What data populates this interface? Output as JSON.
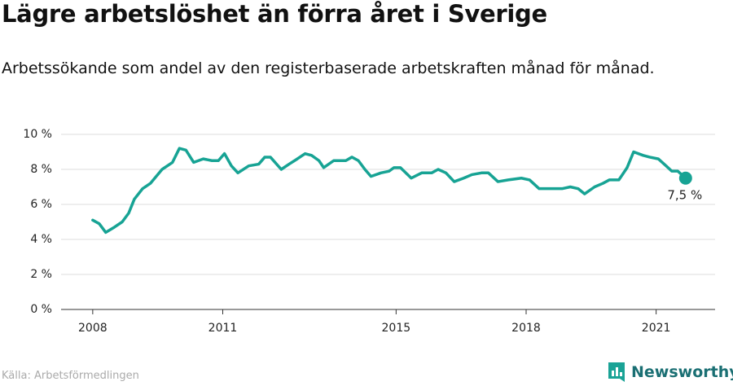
{
  "chart_data": {
    "type": "line",
    "title": "Lägre arbetslöshet än förra året i Sverige",
    "subtitle": "Arbetssökande som andel av den registerbaserade arbetskraften månad för månad.",
    "source": "Källa: Arbetsförmedlingen",
    "logo": "Newsworthy",
    "x": [
      2008.0,
      2008.15,
      2008.3,
      2008.5,
      2008.68,
      2008.83,
      2008.96,
      2009.15,
      2009.33,
      2009.6,
      2009.84,
      2010.0,
      2010.15,
      2010.33,
      2010.55,
      2010.75,
      2010.9,
      2011.04,
      2011.2,
      2011.35,
      2011.6,
      2011.83,
      2011.97,
      2012.1,
      2012.35,
      2012.53,
      2012.72,
      2012.9,
      2013.05,
      2013.22,
      2013.33,
      2013.56,
      2013.84,
      2013.98,
      2014.13,
      2014.28,
      2014.42,
      2014.65,
      2014.84,
      2014.95,
      2015.1,
      2015.35,
      2015.59,
      2015.82,
      2015.97,
      2016.15,
      2016.34,
      2016.56,
      2016.75,
      2016.97,
      2017.13,
      2017.35,
      2017.59,
      2017.89,
      2018.08,
      2018.3,
      2018.55,
      2018.83,
      2019.02,
      2019.2,
      2019.35,
      2019.58,
      2019.77,
      2019.92,
      2020.14,
      2020.33,
      2020.48,
      2020.7,
      2020.85,
      2021.05,
      2021.23,
      2021.36,
      2021.5,
      2021.68
    ],
    "series": [
      {
        "name": "Sverige",
        "color": "#17a394",
        "values": [
          5.1,
          4.9,
          4.4,
          4.7,
          5.0,
          5.5,
          6.3,
          6.9,
          7.2,
          8.0,
          8.4,
          9.2,
          9.1,
          8.4,
          8.6,
          8.5,
          8.5,
          8.9,
          8.2,
          7.8,
          8.2,
          8.3,
          8.7,
          8.7,
          8.0,
          8.3,
          8.6,
          8.9,
          8.8,
          8.5,
          8.1,
          8.5,
          8.5,
          8.7,
          8.5,
          8.0,
          7.6,
          7.8,
          7.9,
          8.1,
          8.1,
          7.5,
          7.8,
          7.8,
          8.0,
          7.8,
          7.3,
          7.5,
          7.7,
          7.8,
          7.8,
          7.3,
          7.4,
          7.5,
          7.4,
          6.9,
          6.9,
          6.9,
          7.0,
          6.9,
          6.6,
          7.0,
          7.2,
          7.4,
          7.4,
          8.1,
          9.0,
          8.8,
          8.7,
          8.6,
          8.2,
          7.9,
          7.9,
          7.5
        ],
        "value_labels": [
          null,
          null,
          null,
          null,
          null,
          null,
          null,
          null,
          null,
          null,
          null,
          null,
          null,
          null,
          null,
          null,
          null,
          null,
          null,
          null,
          null,
          null,
          null,
          null,
          null,
          null,
          null,
          null,
          null,
          null,
          null,
          null,
          null,
          null,
          null,
          null,
          null,
          null,
          null,
          null,
          null,
          null,
          null,
          null,
          null,
          null,
          null,
          null,
          null,
          null,
          null,
          null,
          null,
          null,
          null,
          null,
          null,
          null,
          null,
          null,
          null,
          null,
          null,
          null,
          null,
          null,
          null,
          null,
          null,
          null,
          null,
          null,
          null,
          "7,5 %"
        ]
      }
    ],
    "xlim": [
      2007.27,
      2022.36
    ],
    "xticks": [
      2008,
      2011,
      2015,
      2018,
      2021
    ],
    "ylim": [
      0,
      10
    ],
    "yticks": [
      {
        "value": 0,
        "label": "0 %"
      },
      {
        "value": 2,
        "label": "2 %"
      },
      {
        "value": 4,
        "label": "4 %"
      },
      {
        "value": 6,
        "label": "6 %"
      },
      {
        "value": 8,
        "label": "8 %"
      },
      {
        "value": 10,
        "label": "10 %"
      }
    ],
    "grid": true
  }
}
